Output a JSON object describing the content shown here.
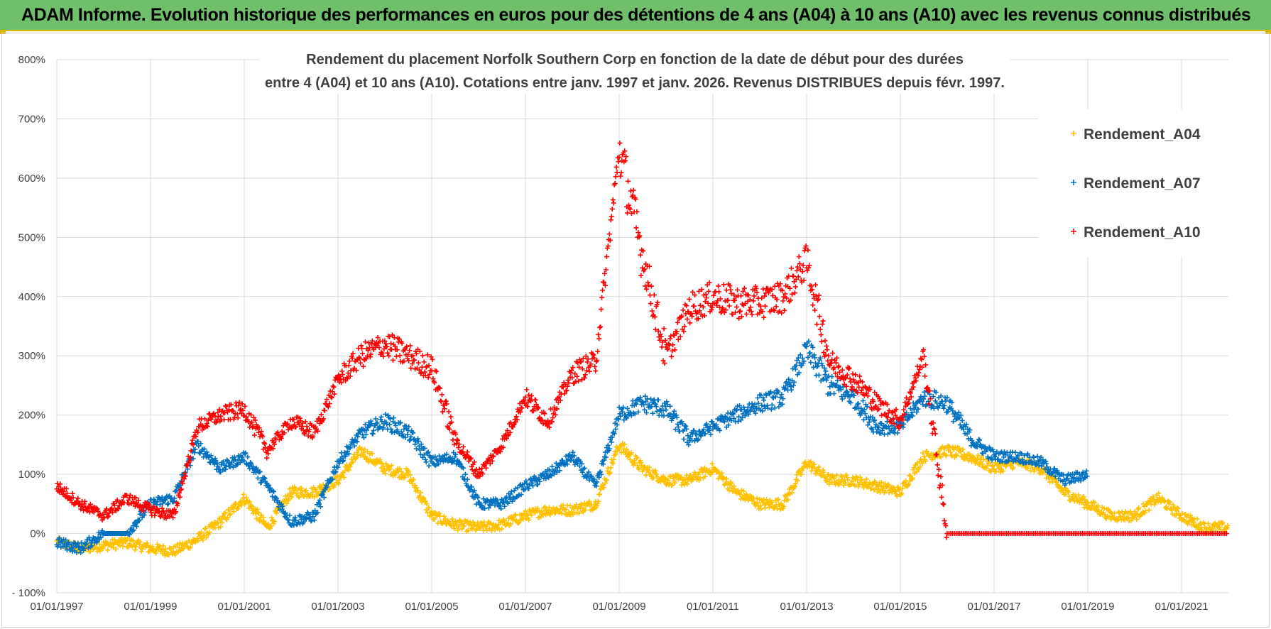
{
  "header": {
    "banner": "ADAM Informe. Evolution historique des performances en euros pour des détentions de 4 ans (A04) à 10 ans (A10) avec les revenus connus distribués"
  },
  "colors": {
    "banner_bg": "#70bf6b",
    "A04": "#ffc000",
    "A07": "#0070c0",
    "A10": "#ff0000",
    "grid": "#d9d9d9"
  },
  "chart_data": {
    "type": "scatter",
    "title_lines": [
      "Rendement du placement Norfolk Southern Corp en fonction de la date de début pour des durées",
      "entre 4 (A04) et 10 ans (A10). Cotations entre janv. 1997 et janv. 2026. Revenus DISTRIBUES depuis févr. 1997."
    ],
    "x_axis": {
      "min": "1997-01-01",
      "max": "2022-01-01",
      "ticks": [
        "01/01/1997",
        "01/01/1999",
        "01/01/2001",
        "01/01/2003",
        "01/01/2005",
        "01/01/2007",
        "01/01/2009",
        "01/01/2011",
        "01/01/2013",
        "01/01/2015",
        "01/01/2017",
        "01/01/2019",
        "01/01/2021"
      ]
    },
    "y_axis": {
      "min": -100,
      "max": 800,
      "unit": "%",
      "ticks": [
        "- 100%",
        "0%",
        "100%",
        "200%",
        "300%",
        "400%",
        "500%",
        "600%",
        "700%",
        "800%"
      ]
    },
    "grid": true,
    "legend": {
      "position": "top-right",
      "marker": "+"
    },
    "series": [
      {
        "name": "Rendement_A04",
        "color": "#ffc000",
        "points": [
          [
            "1997-01-01",
            -15
          ],
          [
            "1997-07-01",
            -25
          ],
          [
            "1998-01-01",
            -20
          ],
          [
            "1998-07-01",
            -15
          ],
          [
            "1999-01-01",
            -25
          ],
          [
            "1999-07-01",
            -30
          ],
          [
            "2000-01-01",
            -10
          ],
          [
            "2000-07-01",
            20
          ],
          [
            "2001-01-01",
            60
          ],
          [
            "2001-07-01",
            10
          ],
          [
            "2002-01-01",
            70
          ],
          [
            "2002-07-01",
            70
          ],
          [
            "2003-01-01",
            90
          ],
          [
            "2003-07-01",
            140
          ],
          [
            "2004-01-01",
            110
          ],
          [
            "2004-07-01",
            100
          ],
          [
            "2005-01-01",
            30
          ],
          [
            "2005-07-01",
            15
          ],
          [
            "2006-01-01",
            10
          ],
          [
            "2006-07-01",
            15
          ],
          [
            "2007-01-01",
            30
          ],
          [
            "2007-07-01",
            40
          ],
          [
            "2008-01-01",
            40
          ],
          [
            "2008-07-01",
            50
          ],
          [
            "2009-01-01",
            150
          ],
          [
            "2009-07-01",
            110
          ],
          [
            "2010-01-01",
            90
          ],
          [
            "2010-07-01",
            90
          ],
          [
            "2011-01-01",
            110
          ],
          [
            "2011-07-01",
            70
          ],
          [
            "2012-01-01",
            50
          ],
          [
            "2012-07-01",
            50
          ],
          [
            "2013-01-01",
            120
          ],
          [
            "2013-07-01",
            90
          ],
          [
            "2014-01-01",
            90
          ],
          [
            "2014-07-01",
            80
          ],
          [
            "2015-01-01",
            70
          ],
          [
            "2015-07-01",
            130
          ],
          [
            "2016-01-01",
            140
          ],
          [
            "2016-07-01",
            130
          ],
          [
            "2017-01-01",
            110
          ],
          [
            "2017-07-01",
            120
          ],
          [
            "2018-01-01",
            110
          ],
          [
            "2018-07-01",
            70
          ],
          [
            "2019-01-01",
            50
          ],
          [
            "2019-07-01",
            30
          ],
          [
            "2020-01-01",
            30
          ],
          [
            "2020-07-01",
            60
          ],
          [
            "2021-01-01",
            30
          ],
          [
            "2021-07-01",
            10
          ],
          [
            "2022-01-01",
            10
          ]
        ]
      },
      {
        "name": "Rendement_A07",
        "color": "#0070c0",
        "points": [
          [
            "1997-01-01",
            -15
          ],
          [
            "1997-07-01",
            -25
          ],
          [
            "1998-01-01",
            0
          ],
          [
            "1998-07-01",
            0
          ],
          [
            "1999-01-01",
            50
          ],
          [
            "1999-07-01",
            60
          ],
          [
            "2000-01-01",
            150
          ],
          [
            "2000-07-01",
            110
          ],
          [
            "2001-01-01",
            130
          ],
          [
            "2001-07-01",
            80
          ],
          [
            "2002-01-01",
            20
          ],
          [
            "2002-07-01",
            30
          ],
          [
            "2003-01-01",
            120
          ],
          [
            "2003-07-01",
            170
          ],
          [
            "2004-01-01",
            190
          ],
          [
            "2004-07-01",
            170
          ],
          [
            "2005-01-01",
            120
          ],
          [
            "2005-07-01",
            130
          ],
          [
            "2006-01-01",
            50
          ],
          [
            "2006-07-01",
            50
          ],
          [
            "2007-01-01",
            80
          ],
          [
            "2007-07-01",
            100
          ],
          [
            "2008-01-01",
            130
          ],
          [
            "2008-07-01",
            80
          ],
          [
            "2009-01-01",
            200
          ],
          [
            "2009-07-01",
            220
          ],
          [
            "2010-01-01",
            210
          ],
          [
            "2010-07-01",
            160
          ],
          [
            "2011-01-01",
            180
          ],
          [
            "2011-07-01",
            200
          ],
          [
            "2012-01-01",
            220
          ],
          [
            "2012-07-01",
            230
          ],
          [
            "2013-01-01",
            310
          ],
          [
            "2013-07-01",
            250
          ],
          [
            "2014-01-01",
            230
          ],
          [
            "2014-07-01",
            180
          ],
          [
            "2015-01-01",
            180
          ],
          [
            "2015-07-01",
            230
          ],
          [
            "2016-01-01",
            220
          ],
          [
            "2016-07-01",
            160
          ],
          [
            "2017-01-01",
            130
          ],
          [
            "2017-07-01",
            130
          ],
          [
            "2018-01-01",
            120
          ],
          [
            "2018-07-01",
            90
          ],
          [
            "2019-01-01",
            100
          ]
        ]
      },
      {
        "name": "Rendement_A10",
        "color": "#ff0000",
        "points": [
          [
            "1997-01-01",
            80
          ],
          [
            "1997-07-01",
            50
          ],
          [
            "1998-01-01",
            30
          ],
          [
            "1998-07-01",
            60
          ],
          [
            "1999-01-01",
            40
          ],
          [
            "1999-07-01",
            30
          ],
          [
            "2000-01-01",
            180
          ],
          [
            "2000-07-01",
            200
          ],
          [
            "2001-01-01",
            210
          ],
          [
            "2001-07-01",
            140
          ],
          [
            "2002-01-01",
            190
          ],
          [
            "2002-07-01",
            170
          ],
          [
            "2003-01-01",
            260
          ],
          [
            "2003-07-01",
            300
          ],
          [
            "2004-01-01",
            320
          ],
          [
            "2004-07-01",
            300
          ],
          [
            "2005-01-01",
            280
          ],
          [
            "2005-07-01",
            160
          ],
          [
            "2006-01-01",
            100
          ],
          [
            "2006-07-01",
            150
          ],
          [
            "2007-01-01",
            230
          ],
          [
            "2007-07-01",
            190
          ],
          [
            "2008-01-01",
            270
          ],
          [
            "2008-07-01",
            290
          ],
          [
            "2009-01-01",
            650
          ],
          [
            "2009-07-01",
            470
          ],
          [
            "2010-01-01",
            300
          ],
          [
            "2010-07-01",
            380
          ],
          [
            "2011-01-01",
            400
          ],
          [
            "2011-07-01",
            390
          ],
          [
            "2012-01-01",
            390
          ],
          [
            "2012-07-01",
            400
          ],
          [
            "2013-01-01",
            460
          ],
          [
            "2013-07-01",
            290
          ],
          [
            "2014-01-01",
            260
          ],
          [
            "2014-07-01",
            220
          ],
          [
            "2015-01-01",
            190
          ],
          [
            "2015-07-01",
            300
          ],
          [
            "2016-01-01",
            0
          ],
          [
            "2017-01-01",
            0
          ],
          [
            "2018-01-01",
            0
          ],
          [
            "2019-01-01",
            0
          ],
          [
            "2020-01-01",
            0
          ],
          [
            "2021-01-01",
            0
          ],
          [
            "2022-01-01",
            0
          ]
        ]
      }
    ]
  }
}
